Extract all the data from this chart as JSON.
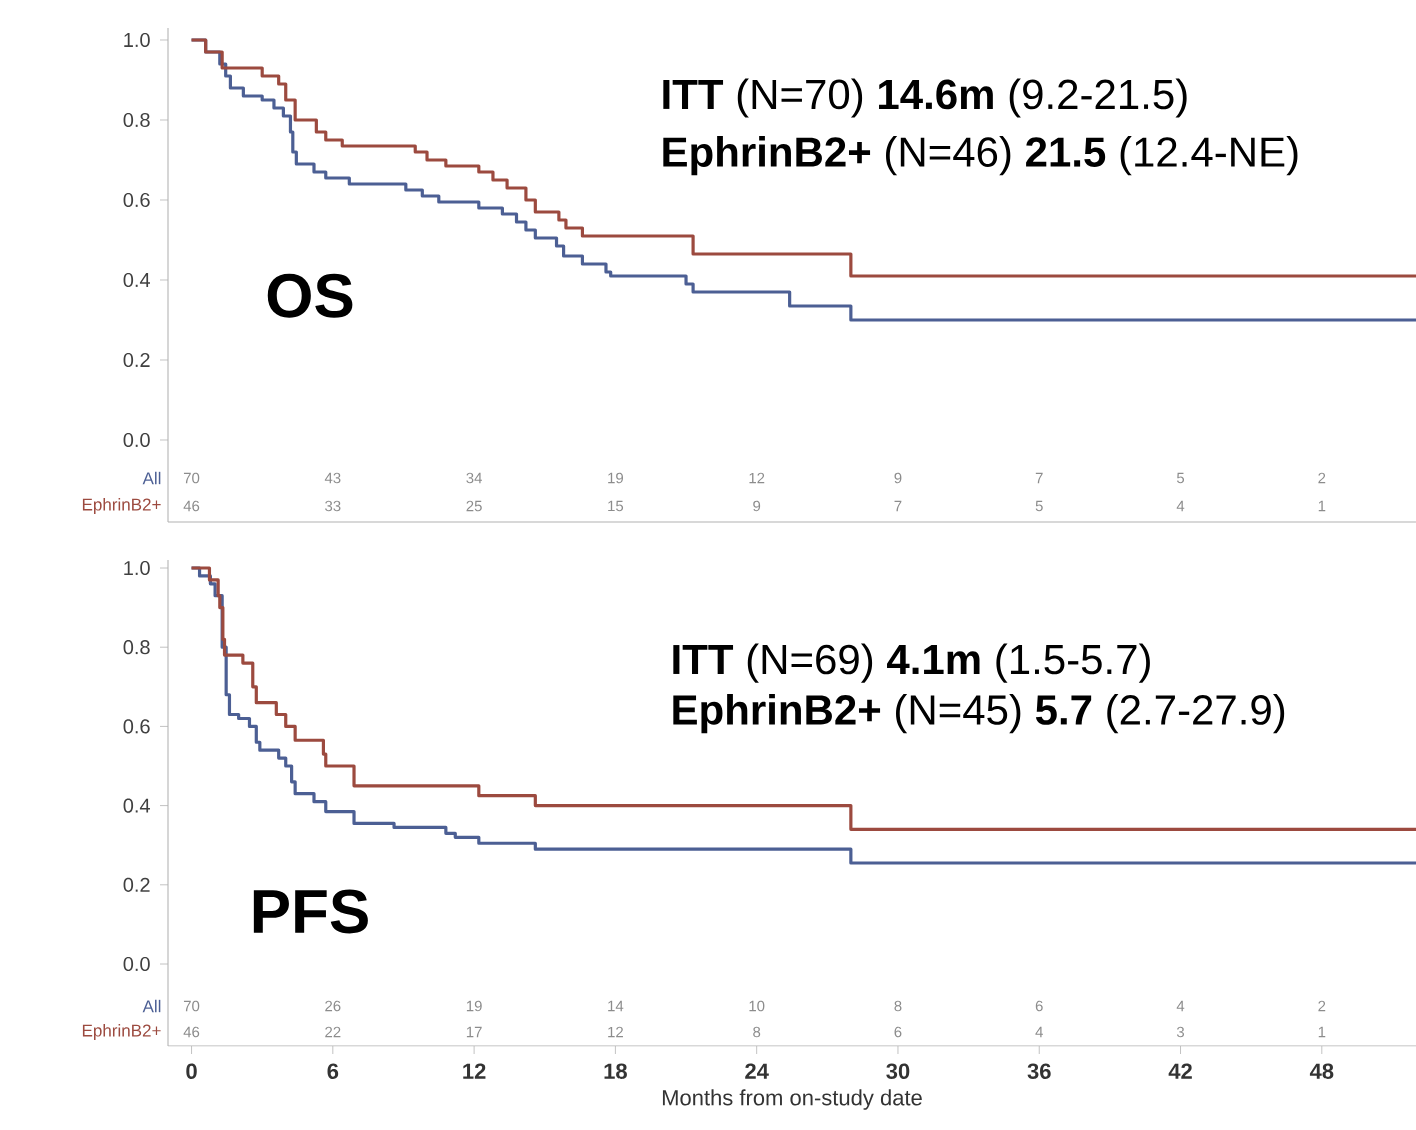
{
  "chart_data": [
    {
      "type": "step",
      "ylim": [
        0,
        1.03
      ],
      "tick_labels": "y",
      "xticks": [
        0,
        6,
        12,
        18,
        24,
        30,
        36,
        42,
        48
      ],
      "yticks": [
        {
          "value": 0,
          "label": "0.0"
        },
        {
          "value": 0.2,
          "label": "0.2"
        },
        {
          "value": 0.4,
          "label": "0.4"
        },
        {
          "value": 0.6,
          "label": "0.6"
        },
        {
          "value": 0.8,
          "label": "0.8"
        },
        {
          "value": 1,
          "label": "1.0"
        }
      ],
      "series": [
        {
          "name": "All",
          "color": "#4c5f94",
          "x": [
            0,
            0.6,
            1.2,
            1.45,
            1.65,
            2.2,
            3.0,
            3.5,
            3.9,
            4.2,
            4.3,
            4.45,
            5.2,
            5.7,
            6.7,
            9.1,
            9.8,
            10.5,
            12.2,
            13.2,
            13.8,
            14.2,
            14.6,
            15.5,
            15.8,
            16.6,
            17.6,
            17.8,
            21.0,
            21.3,
            25.4,
            28.0,
            52
          ],
          "values": [
            1.0,
            0.97,
            0.94,
            0.91,
            0.88,
            0.86,
            0.85,
            0.83,
            0.81,
            0.77,
            0.72,
            0.69,
            0.67,
            0.655,
            0.64,
            0.625,
            0.61,
            0.595,
            0.58,
            0.565,
            0.545,
            0.525,
            0.505,
            0.485,
            0.46,
            0.44,
            0.42,
            0.41,
            0.39,
            0.37,
            0.335,
            0.3,
            0.3
          ]
        },
        {
          "name": "EphrinB2+",
          "color": "#9c4a3f",
          "x": [
            0,
            0.6,
            1.3,
            3.0,
            3.7,
            4.0,
            4.4,
            5.3,
            5.7,
            6.4,
            9.5,
            10.0,
            10.8,
            12.2,
            12.8,
            13.4,
            14.2,
            14.6,
            15.6,
            15.9,
            16.6,
            21.3,
            28.0,
            52
          ],
          "values": [
            1.0,
            0.97,
            0.93,
            0.91,
            0.89,
            0.85,
            0.8,
            0.77,
            0.75,
            0.735,
            0.72,
            0.7,
            0.685,
            0.67,
            0.65,
            0.63,
            0.6,
            0.57,
            0.55,
            0.53,
            0.51,
            0.465,
            0.41,
            0.41
          ]
        }
      ],
      "annotations": [
        "**ITT** (N=70) **14.6m** (9.2-21.5)",
        "**EphrinB2+** (N=46) **21.5** (12.4-NE)",
        "**OS**",
        "70",
        "43",
        "34",
        "19",
        "12",
        "9",
        "7",
        "5",
        "2",
        "46",
        "33",
        "25",
        "15",
        "9",
        "7",
        "5",
        "4",
        "1"
      ]
    },
    {
      "type": "step",
      "xlim": [
        -1,
        52
      ],
      "ylim": [
        0,
        1.02
      ],
      "xlabel": "Months from on-study date",
      "xticks": [
        0,
        6,
        12,
        18,
        24,
        30,
        36,
        42,
        48
      ],
      "yticks": [
        {
          "value": 0,
          "label": "0.0"
        },
        {
          "value": 0.2,
          "label": "0.2"
        },
        {
          "value": 0.4,
          "label": "0.4"
        },
        {
          "value": 0.6,
          "label": "0.6"
        },
        {
          "value": 0.8,
          "label": "0.8"
        },
        {
          "value": 1,
          "label": "1.0"
        }
      ],
      "series": [
        {
          "name": "All",
          "color": "#4c5f94",
          "x": [
            0,
            0.34,
            0.8,
            1.0,
            1.3,
            1.47,
            1.61,
            2.0,
            2.46,
            2.75,
            2.9,
            3.7,
            4.0,
            4.25,
            4.4,
            5.2,
            5.7,
            6.9,
            8.6,
            10.8,
            11.2,
            12.2,
            14.6,
            28.0,
            52
          ],
          "values": [
            1.0,
            0.98,
            0.96,
            0.93,
            0.8,
            0.68,
            0.63,
            0.62,
            0.6,
            0.56,
            0.54,
            0.52,
            0.5,
            0.46,
            0.43,
            0.41,
            0.385,
            0.355,
            0.345,
            0.33,
            0.32,
            0.305,
            0.29,
            0.255,
            0.255
          ]
        },
        {
          "name": "EphrinB2+",
          "color": "#9c4a3f",
          "x": [
            0,
            0.76,
            1.13,
            1.2,
            1.33,
            1.4,
            2.18,
            2.6,
            2.75,
            3.6,
            4.0,
            4.4,
            5.6,
            5.7,
            6.9,
            12.2,
            14.6,
            28.0,
            52
          ],
          "values": [
            1.0,
            0.97,
            0.93,
            0.9,
            0.82,
            0.78,
            0.76,
            0.7,
            0.66,
            0.63,
            0.6,
            0.565,
            0.53,
            0.5,
            0.45,
            0.425,
            0.4,
            0.34,
            0.34
          ]
        }
      ],
      "annotations": [
        "**ITT** (N=69) **4.1m** (1.5-5.7)",
        "**EphrinB2+** (N=45) **5.7** (2.7-27.9)",
        "**PFS**",
        "70",
        "26",
        "19",
        "14",
        "10",
        "8",
        "6",
        "4",
        "2",
        "46",
        "22",
        "17",
        "12",
        "8",
        "6",
        "4",
        "3",
        "1"
      ]
    }
  ]
}
